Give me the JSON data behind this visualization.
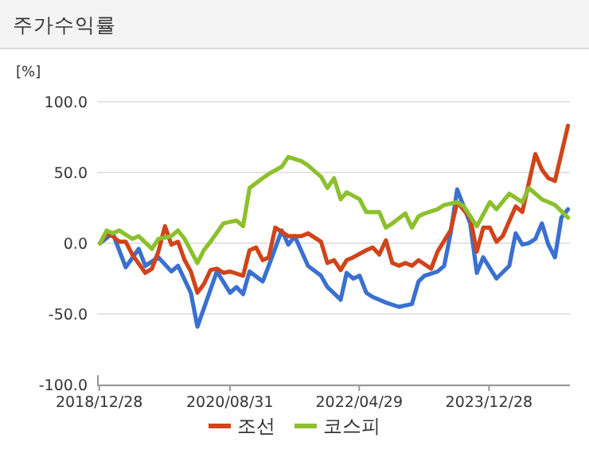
{
  "chart_data": {
    "type": "line",
    "title": "주가수익률",
    "ylabel": "[%]",
    "xlim": [
      "2018-12-18",
      "2025-01-10"
    ],
    "xticks": [
      {
        "value": "2018-12-28",
        "label": "2018/12/28"
      },
      {
        "value": "2020-08-31",
        "label": "2020/08/31"
      },
      {
        "value": "2022-04-29",
        "label": "2022/04/29"
      },
      {
        "value": "2023-12-28",
        "label": "2023/12/28"
      }
    ],
    "ylim": [
      -100,
      100
    ],
    "yticks": [
      {
        "value": -100,
        "label": "-100.0"
      },
      {
        "value": -50,
        "label": "-50.0"
      },
      {
        "value": 0,
        "label": "0.0"
      },
      {
        "value": 50,
        "label": "50.0"
      },
      {
        "value": 100,
        "label": "100.0"
      }
    ],
    "grid": "y",
    "legend": "bottom",
    "line_style": "solid",
    "marker": "none",
    "series": [
      {
        "color": "#3a70d0",
        "x": [
          "2019-01",
          "2019-03",
          "2019-05",
          "2019-07",
          "2019-08",
          "2019-10",
          "2019-12",
          "2020-01",
          "2020-03",
          "2020-04",
          "2020-07",
          "2020-09",
          "2020-10",
          "2020-11",
          "2020-12",
          "2021-02",
          "2021-03",
          "2021-05",
          "2021-06",
          "2021-07",
          "2021-09",
          "2021-11",
          "2021-12",
          "2022-02",
          "2022-03",
          "2022-04",
          "2022-05",
          "2022-06",
          "2022-07",
          "2022-08",
          "2022-09",
          "2022-11",
          "2023-01",
          "2023-02",
          "2023-03",
          "2023-05",
          "2023-06",
          "2023-07",
          "2023-08",
          "2023-10",
          "2023-11",
          "2023-12",
          "2024-02",
          "2024-04",
          "2024-05",
          "2024-06",
          "2024-07",
          "2024-08",
          "2024-09",
          "2024-10",
          "2024-11",
          "2024-12",
          "2025-01"
        ],
        "values": [
          0,
          7,
          -17,
          -4,
          -16,
          -10,
          -20,
          -16,
          -35,
          -59,
          -20,
          -35,
          -31,
          -36,
          -20,
          -27,
          -16,
          9,
          -1,
          5,
          -16,
          -23,
          -31,
          -40,
          -21,
          -25,
          -23,
          -35,
          -38,
          -40,
          -42,
          -45,
          -43,
          -27,
          -23,
          -20,
          -16,
          7,
          38,
          14,
          -21,
          -10,
          -25,
          -16,
          7,
          -1,
          0,
          3,
          14,
          -1,
          -10,
          18,
          24
        ]
      },
      {
        "name": "조선",
        "color": "#d0441a",
        "x": [
          "2019-01",
          "2019-02",
          "2019-03",
          "2019-04",
          "2019-05",
          "2019-06",
          "2019-08",
          "2019-09",
          "2019-10",
          "2019-11",
          "2019-12",
          "2020-01",
          "2020-02",
          "2020-03",
          "2020-04",
          "2020-05",
          "2020-06",
          "2020-07",
          "2020-08",
          "2020-09",
          "2020-11",
          "2020-12",
          "2021-01",
          "2021-02",
          "2021-03",
          "2021-04",
          "2021-06",
          "2021-07",
          "2021-08",
          "2021-09",
          "2021-11",
          "2021-12",
          "2022-01",
          "2022-02",
          "2022-03",
          "2022-04",
          "2022-06",
          "2022-07",
          "2022-08",
          "2022-09",
          "2022-10",
          "2022-11",
          "2022-12",
          "2023-01",
          "2023-02",
          "2023-04",
          "2023-05",
          "2023-07",
          "2023-08",
          "2023-10",
          "2023-11",
          "2023-12",
          "2024-01",
          "2024-02",
          "2024-03",
          "2024-05",
          "2024-06",
          "2024-08",
          "2024-09",
          "2024-10",
          "2024-11",
          "2025-01"
        ],
        "values": [
          0,
          7,
          5,
          1,
          1,
          -8,
          -21,
          -18,
          -6,
          12,
          -1,
          1,
          -12,
          -20,
          -35,
          -29,
          -19,
          -18,
          -21,
          -20,
          -23,
          -5,
          -3,
          -12,
          -10,
          11,
          5,
          5,
          5,
          7,
          1,
          -14,
          -12,
          -19,
          -12,
          -10,
          -5,
          -3,
          -8,
          2,
          -14,
          -16,
          -14,
          -16,
          -12,
          -18,
          -6,
          9,
          29,
          18,
          -6,
          11,
          11,
          1,
          5,
          26,
          22,
          63,
          52,
          46,
          44,
          83
        ]
      },
      {
        "name": "코스피",
        "color": "#8cc02c",
        "x": [
          "2019-01",
          "2019-02",
          "2019-03",
          "2019-04",
          "2019-06",
          "2019-07",
          "2019-09",
          "2019-10",
          "2019-12",
          "2020-01",
          "2020-02",
          "2020-04",
          "2020-05",
          "2020-06",
          "2020-08",
          "2020-10",
          "2020-11",
          "2020-12",
          "2021-02",
          "2021-03",
          "2021-05",
          "2021-06",
          "2021-08",
          "2021-09",
          "2021-11",
          "2021-12",
          "2022-01",
          "2022-02",
          "2022-03",
          "2022-05",
          "2022-06",
          "2022-08",
          "2022-09",
          "2022-10",
          "2022-12",
          "2023-01",
          "2023-02",
          "2023-03",
          "2023-05",
          "2023-06",
          "2023-08",
          "2023-09",
          "2023-11",
          "2024-01",
          "2024-02",
          "2024-04",
          "2024-06",
          "2024-07",
          "2024-09",
          "2024-11",
          "2025-01"
        ],
        "values": [
          0,
          9,
          7,
          9,
          3,
          5,
          -4,
          3,
          5,
          9,
          3,
          -14,
          -5,
          1,
          14,
          16,
          12,
          39,
          46,
          49,
          54,
          61,
          58,
          55,
          47,
          39,
          46,
          31,
          36,
          31,
          22,
          22,
          11,
          14,
          21,
          11,
          19,
          21,
          24,
          27,
          29,
          26,
          12,
          29,
          24,
          35,
          29,
          39,
          31,
          27,
          18
        ]
      }
    ]
  }
}
